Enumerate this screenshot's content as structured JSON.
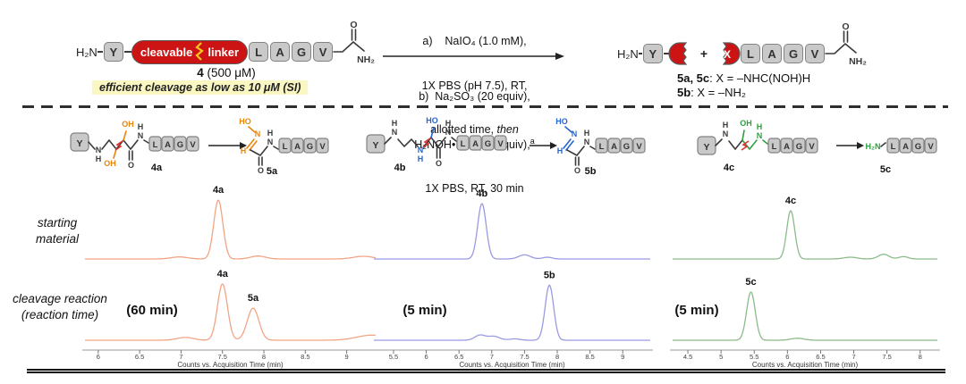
{
  "colors": {
    "trace_orange": "#f2a584",
    "trace_blue": "#9a9ae4",
    "trace_green": "#8cbb8c",
    "accent_orange": "#e8860d",
    "accent_blue": "#2565cf",
    "accent_green": "#2f9e3f",
    "slash_red": "#e03030",
    "linker_red": "#cd1414",
    "block_bg": "#c9c9c9",
    "block_border": "#828282",
    "highlight_yellow": "#fbf7c3",
    "zigzag_yellow": "#f7c71f"
  },
  "atoms": {
    "y": "Y",
    "n": "N",
    "h": "H",
    "o": "O",
    "oh": "OH",
    "ho": "HO",
    "h2n": "H₂N",
    "nh2": "NH₂",
    "x": "X"
  },
  "scheme": {
    "amine": "H₂N",
    "linker_word1": "cleavable",
    "linker_word2": "linker",
    "residues": [
      "L",
      "A",
      "G",
      "V"
    ],
    "compound_num": "4",
    "compound_conc": " (500 μM)",
    "note": "efficient cleavage as low as 10 μM (SI)",
    "cond_a_l1": "a)    NaIO₄ (1.0 mM),",
    "cond_a_l2": "1X PBS (pH 7.5), RT,",
    "cond_a_l3_pre": "allotted time, ",
    "cond_a_l3_it": "then",
    "cond_b_l1": "b)  Na₂SO₃ (20 equiv),",
    "cond_b_l2": "H₂NOH•HCl (50 equiv),",
    "cond_b_sup": "a",
    "cond_b_l3": "1X PBS, RT, 30 min",
    "plus": "+",
    "note1_b": "5a, 5c",
    "note1_r": ": X = –NHC(NOH)H",
    "note2_b": "5b",
    "note2_r": ": X = –NH₂"
  },
  "structures": {
    "a": {
      "reactant": "4a",
      "product": "5a"
    },
    "b": {
      "reactant": "4b",
      "product": "5b"
    },
    "c": {
      "reactant": "4c",
      "product": "5c"
    }
  },
  "row_labels": {
    "top": "starting material",
    "bottom": "cleavage reaction (reaction time)"
  },
  "chart_data": {
    "type": "line",
    "axis_label": "Counts vs. Acquisition Time (min)",
    "ylabel": "Counts",
    "xlabel": "Acquisition Time (min)",
    "rows": [
      "starting material",
      "cleavage reaction"
    ],
    "panels": [
      {
        "id": "a",
        "color_key": "trace_orange",
        "x_min": 5.84,
        "x_max": 9.35,
        "ticks": [
          6,
          6.5,
          7,
          7.5,
          8,
          8.5,
          9
        ],
        "top": {
          "labels": [
            {
              "text": "4a",
              "t": 7.45,
              "h": 1.0
            }
          ],
          "peaks": [
            {
              "t": 7.45,
              "h": 1.0,
              "w": 0.055
            },
            {
              "t": 6.98,
              "h": 0.035,
              "w": 0.1
            },
            {
              "t": 7.93,
              "h": 0.05,
              "w": 0.09
            },
            {
              "t": 9.2,
              "h": 0.045,
              "w": 0.12
            }
          ]
        },
        "bottom": {
          "time_note": "(60 min)",
          "labels": [
            {
              "text": "4a",
              "t": 7.5,
              "h": 1.0
            },
            {
              "text": "5a",
              "t": 7.87,
              "h": 0.57
            }
          ],
          "peaks": [
            {
              "t": 7.5,
              "h": 1.0,
              "w": 0.06
            },
            {
              "t": 7.87,
              "h": 0.57,
              "w": 0.07
            },
            {
              "t": 7.05,
              "h": 0.05,
              "w": 0.1
            },
            {
              "t": 9.3,
              "h": 0.09,
              "w": 0.18
            }
          ]
        }
      },
      {
        "id": "b",
        "color_key": "trace_blue",
        "x_min": 5.2,
        "x_max": 9.42,
        "ticks": [
          5.5,
          6,
          6.5,
          7,
          7.5,
          8,
          8.5,
          9
        ],
        "top": {
          "labels": [
            {
              "text": "4b",
              "t": 6.85,
              "h": 0.94
            }
          ],
          "peaks": [
            {
              "t": 6.85,
              "h": 0.94,
              "w": 0.065
            },
            {
              "t": 7.5,
              "h": 0.07,
              "w": 0.09
            },
            {
              "t": 7.85,
              "h": 0.03,
              "w": 0.07
            }
          ]
        },
        "bottom": {
          "time_note": "(5 min)",
          "labels": [
            {
              "text": "5b",
              "t": 7.88,
              "h": 0.98
            }
          ],
          "peaks": [
            {
              "t": 6.82,
              "h": 0.09,
              "w": 0.08
            },
            {
              "t": 7.03,
              "h": 0.07,
              "w": 0.09
            },
            {
              "t": 7.35,
              "h": 0.025,
              "w": 0.08
            },
            {
              "t": 7.88,
              "h": 0.98,
              "w": 0.065
            }
          ]
        }
      },
      {
        "id": "c",
        "color_key": "trace_green",
        "x_min": 4.27,
        "x_max": 8.26,
        "ticks": [
          4.5,
          5,
          5.5,
          6,
          6.5,
          7,
          7.5,
          8
        ],
        "top": {
          "labels": [
            {
              "text": "4c",
              "t": 6.05,
              "h": 0.82
            }
          ],
          "peaks": [
            {
              "t": 6.05,
              "h": 0.82,
              "w": 0.06
            },
            {
              "t": 6.95,
              "h": 0.03,
              "w": 0.1
            },
            {
              "t": 7.45,
              "h": 0.08,
              "w": 0.08
            },
            {
              "t": 7.75,
              "h": 0.04,
              "w": 0.07
            }
          ]
        },
        "bottom": {
          "time_note": "(5 min)",
          "labels": [
            {
              "text": "5c",
              "t": 5.45,
              "h": 0.86
            }
          ],
          "peaks": [
            {
              "t": 5.45,
              "h": 0.86,
              "w": 0.065
            },
            {
              "t": 6.15,
              "h": 0.035,
              "w": 0.1
            }
          ]
        }
      }
    ]
  }
}
